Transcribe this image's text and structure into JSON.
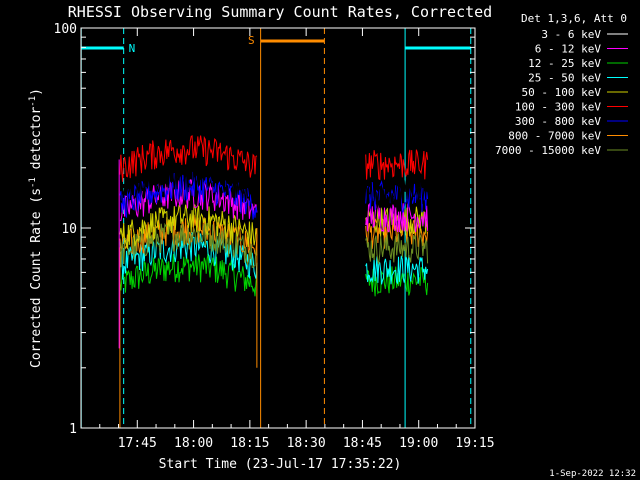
{
  "chart_data": {
    "type": "line",
    "title": "RHESSI Observing Summary Count Rates, Corrected",
    "xlabel": "Start Time (23-Jul-17 17:35:22)",
    "ylabel_parts": [
      "Corrected Count Rate (s",
      "-1",
      " detector",
      "-1",
      ")"
    ],
    "yscale": "log",
    "ylim": [
      1,
      100
    ],
    "xlim_minutes": [
      -5.37,
      99.63
    ],
    "x_ticks": [
      {
        "label": "17:45",
        "min": 9.63
      },
      {
        "label": "18:00",
        "min": 24.63
      },
      {
        "label": "18:15",
        "min": 39.63
      },
      {
        "label": "18:30",
        "min": 54.63
      },
      {
        "label": "18:45",
        "min": 69.63
      },
      {
        "label": "19:00",
        "min": 84.63
      },
      {
        "label": "19:15",
        "min": 99.63
      }
    ],
    "y_ticks": [
      {
        "label": "1",
        "v": 1
      },
      {
        "label": "10",
        "v": 10
      },
      {
        "label": "100",
        "v": 100
      }
    ],
    "legend_title": "Det 1,3,6, Att 0",
    "series": [
      {
        "name": "3 - 6 keV",
        "color": "#000000",
        "level1": 15.0,
        "level2": 15.0
      },
      {
        "name": "6 - 12 keV",
        "color": "#ff00ff",
        "level1": 12.0,
        "level2": 11.5
      },
      {
        "name": "12 - 25 keV",
        "color": "#00d000",
        "level1": 5.2,
        "level2": 5.5
      },
      {
        "name": "25 - 50 keV",
        "color": "#00ffff",
        "level1": 6.5,
        "level2": 6.3
      },
      {
        "name": "50 - 100 keV",
        "color": "#d0d000",
        "level1": 9.0,
        "level2": 11.0
      },
      {
        "name": "100 - 300 keV",
        "color": "#ff0000",
        "level1": 20.0,
        "level2": 21.0
      },
      {
        "name": "300 - 800 keV",
        "color": "#0000ff",
        "level1": 13.0,
        "level2": 14.5
      },
      {
        "name": "800 - 7000 keV",
        "color": "#ff8c00",
        "level1": 8.0,
        "level2": 9.5
      },
      {
        "name": "7000 - 15000 keV",
        "color": "#6b8e23",
        "level1": 7.5,
        "level2": 8.0
      }
    ],
    "data_intervals_minutes": [
      [
        5.0,
        41.5
      ],
      [
        70.5,
        87.0
      ]
    ],
    "markers": [
      {
        "label": "N",
        "color": "#00ffff",
        "start": -5.37,
        "end": 6.0,
        "start2": 81.0,
        "end2": 98.5
      },
      {
        "label": "S",
        "color": "#ff8c00",
        "start": 42.5,
        "end": 59.5
      }
    ],
    "footer": "1-Sep-2022 12:32"
  }
}
